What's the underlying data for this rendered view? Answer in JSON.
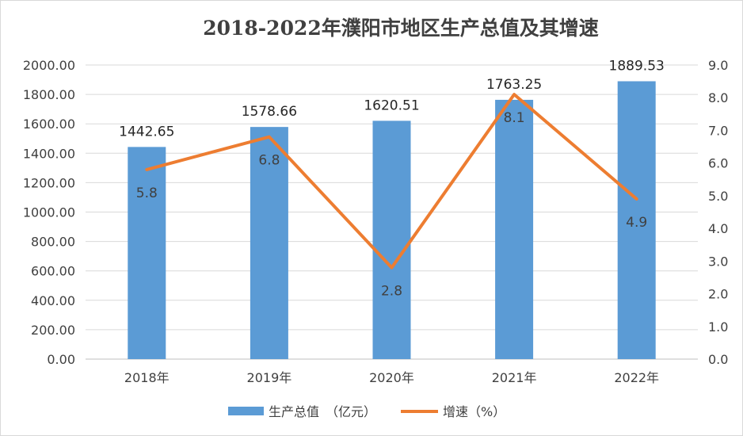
{
  "chart_data": {
    "type": "bar",
    "title": "2018-2022年濮阳市地区生产总值及其增速",
    "categories": [
      "2018年",
      "2019年",
      "2020年",
      "2021年",
      "2022年"
    ],
    "series": [
      {
        "name": "生产总值　（亿元）",
        "type": "bar",
        "axis": "left",
        "color": "#5b9bd5",
        "values": [
          1442.65,
          1578.66,
          1620.51,
          1763.25,
          1889.53
        ],
        "labels": [
          "1442.65",
          "1578.66",
          "1620.51",
          "1763.25",
          "1889.53"
        ]
      },
      {
        "name": "增速（%）",
        "type": "line",
        "axis": "right",
        "color": "#ed7d31",
        "values": [
          5.8,
          6.8,
          2.8,
          8.1,
          4.9
        ],
        "labels": [
          "5.8",
          "6.8",
          "2.8",
          "8.1",
          "4.9"
        ]
      }
    ],
    "y_left": {
      "min": 0,
      "max": 2000,
      "ticks": [
        "0.00",
        "200.00",
        "400.00",
        "600.00",
        "800.00",
        "1000.00",
        "1200.00",
        "1400.00",
        "1600.00",
        "1800.00",
        "2000.00"
      ]
    },
    "y_right": {
      "min": 0,
      "max": 9,
      "ticks": [
        "0.0",
        "1.0",
        "2.0",
        "3.0",
        "4.0",
        "5.0",
        "6.0",
        "7.0",
        "8.0",
        "9.0"
      ]
    },
    "grid": true,
    "legend_position": "bottom"
  }
}
